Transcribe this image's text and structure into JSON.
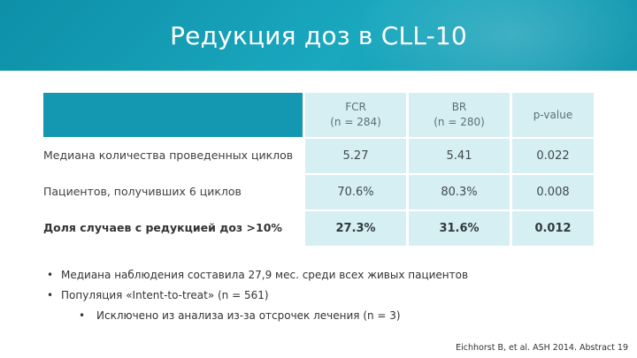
{
  "header": {
    "title": "Редукция доз в CLL-10",
    "bg_color": "#1497b0"
  },
  "table": {
    "columns": [
      {
        "line1": "FCR",
        "line2": "(n = 284)"
      },
      {
        "line1": "BR",
        "line2": "(n = 280)"
      },
      {
        "line1": "p-value",
        "line2": ""
      }
    ],
    "rows": [
      {
        "label": "Медиана количества проведенных циклов",
        "values": [
          "5.27",
          "5.41",
          "0.022"
        ]
      },
      {
        "label": "Пациентов, получивших 6 циклов",
        "values": [
          "70.6%",
          "80.3%",
          "0.008"
        ]
      },
      {
        "label": "Доля случаев с редукцией доз >10%",
        "values": [
          "27.3%",
          "31.6%",
          "0.012"
        ]
      }
    ],
    "cell_color": "#d6eff3"
  },
  "bullets": [
    {
      "dot": "•",
      "text": "Медиана наблюдения составила 27,9 мес. среди всех живых пациентов"
    },
    {
      "dot": "•",
      "text": "Популяция «Intent-to-treat» (n = 561)"
    },
    {
      "dot": "•",
      "text": "Исключено из анализа из-за отсрочек лечения (n = 3)"
    }
  ],
  "citation": "Eichhorst B, et al. ASH 2014. Abstract 19"
}
